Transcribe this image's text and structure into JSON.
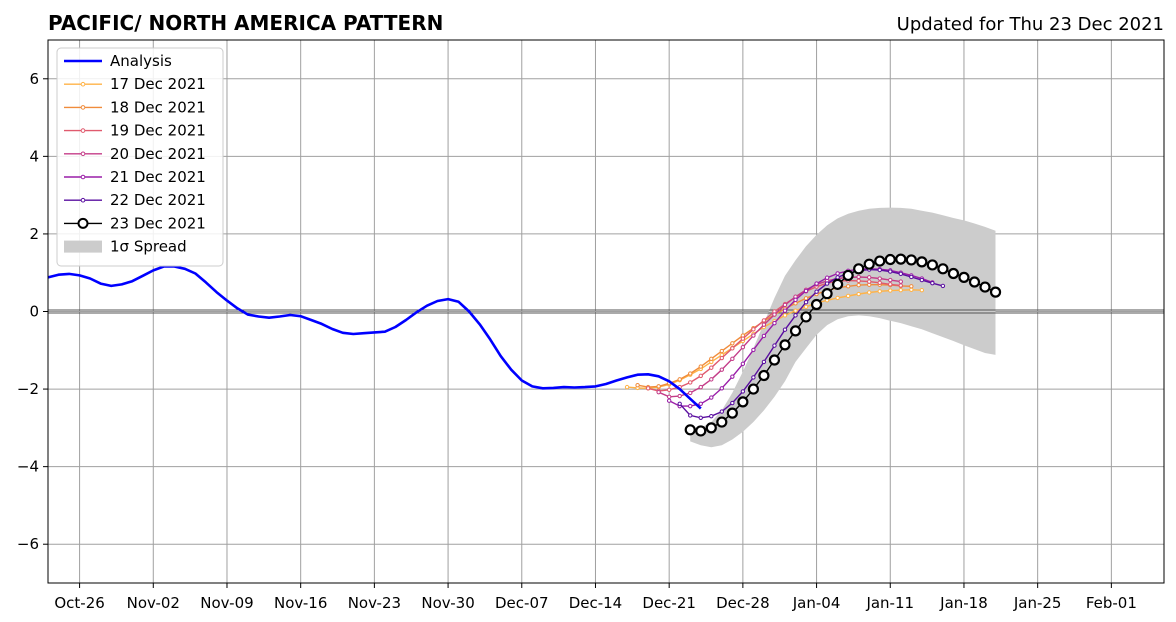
{
  "header": {
    "title": "PACIFIC/ NORTH AMERICA PATTERN",
    "updated": "Updated for Thu 23 Dec 2021"
  },
  "chart_data": {
    "type": "line",
    "title": "PACIFIC/ NORTH AMERICA PATTERN",
    "xlabel": "",
    "ylabel": "",
    "xlim": [
      "2021-10-23",
      "2022-02-06"
    ],
    "ylim": [
      -7,
      7
    ],
    "x_ticks": [
      {
        "date": "2021-10-26",
        "label": "Oct-26"
      },
      {
        "date": "2021-11-02",
        "label": "Nov-02"
      },
      {
        "date": "2021-11-09",
        "label": "Nov-09"
      },
      {
        "date": "2021-11-16",
        "label": "Nov-16"
      },
      {
        "date": "2021-11-23",
        "label": "Nov-23"
      },
      {
        "date": "2021-11-30",
        "label": "Nov-30"
      },
      {
        "date": "2021-12-07",
        "label": "Dec-07"
      },
      {
        "date": "2021-12-14",
        "label": "Dec-14"
      },
      {
        "date": "2021-12-21",
        "label": "Dec-21"
      },
      {
        "date": "2021-12-28",
        "label": "Dec-28"
      },
      {
        "date": "2022-01-04",
        "label": "Jan-04"
      },
      {
        "date": "2022-01-11",
        "label": "Jan-11"
      },
      {
        "date": "2022-01-18",
        "label": "Jan-18"
      },
      {
        "date": "2022-01-25",
        "label": "Jan-25"
      },
      {
        "date": "2022-02-01",
        "label": "Feb-01"
      }
    ],
    "y_ticks": [
      {
        "value": 6,
        "label": "6"
      },
      {
        "value": 4,
        "label": "4"
      },
      {
        "value": 2,
        "label": "2"
      },
      {
        "value": 0,
        "label": "0"
      },
      {
        "value": -2,
        "label": "−2"
      },
      {
        "value": -4,
        "label": "−4"
      },
      {
        "value": -6,
        "label": "−6"
      }
    ],
    "grid": true,
    "legend_position": "top-left",
    "legend": [
      {
        "label": "Analysis",
        "key": "analysis"
      },
      {
        "label": "17 Dec 2021",
        "key": "f17"
      },
      {
        "label": "18 Dec 2021",
        "key": "f18"
      },
      {
        "label": "19 Dec 2021",
        "key": "f19"
      },
      {
        "label": "20 Dec 2021",
        "key": "f20"
      },
      {
        "label": "21 Dec 2021",
        "key": "f21"
      },
      {
        "label": "22 Dec 2021",
        "key": "f22"
      },
      {
        "label": "23 Dec 2021",
        "key": "f23"
      },
      {
        "label": "1σ Spread",
        "key": "spread"
      }
    ],
    "analysis": {
      "color": "#0000ff",
      "start": "2021-10-23",
      "step_days": 1,
      "values": [
        0.88,
        0.95,
        0.97,
        0.93,
        0.85,
        0.72,
        0.66,
        0.7,
        0.78,
        0.92,
        1.06,
        1.16,
        1.16,
        1.1,
        0.98,
        0.75,
        0.5,
        0.28,
        0.08,
        -0.08,
        -0.13,
        -0.16,
        -0.13,
        -0.09,
        -0.12,
        -0.22,
        -0.32,
        -0.45,
        -0.55,
        -0.58,
        -0.56,
        -0.54,
        -0.52,
        -0.4,
        -0.22,
        -0.02,
        0.15,
        0.27,
        0.32,
        0.25,
        0.0,
        -0.33,
        -0.72,
        -1.15,
        -1.5,
        -1.78,
        -1.93,
        -1.98,
        -1.97,
        -1.95,
        -1.96,
        -1.95,
        -1.93,
        -1.87,
        -1.78,
        -1.7,
        -1.63,
        -1.62,
        -1.67,
        -1.8,
        -2.0,
        -2.25,
        -2.5
      ]
    },
    "forecasts": [
      {
        "name": "17 Dec 2021",
        "color": "#ffb347",
        "start": "2021-12-17",
        "step_days": 1,
        "values": [
          -1.95,
          -1.97,
          -1.98,
          -1.95,
          -1.88,
          -1.77,
          -1.63,
          -1.48,
          -1.3,
          -1.12,
          -0.94,
          -0.76,
          -0.58,
          -0.4,
          -0.25,
          -0.1,
          0.02,
          0.12,
          0.22,
          0.29,
          0.35,
          0.4,
          0.45,
          0.49,
          0.52,
          0.54,
          0.55,
          0.56,
          0.55
        ]
      },
      {
        "name": "18 Dec 2021",
        "color": "#f08c3c",
        "start": "2021-12-18",
        "step_days": 1,
        "values": [
          -1.9,
          -1.95,
          -1.93,
          -1.85,
          -1.75,
          -1.6,
          -1.42,
          -1.22,
          -1.02,
          -0.82,
          -0.62,
          -0.43,
          -0.25,
          -0.08,
          0.07,
          0.21,
          0.34,
          0.45,
          0.54,
          0.61,
          0.65,
          0.68,
          0.69,
          0.69,
          0.68,
          0.66,
          0.65
        ]
      },
      {
        "name": "19 Dec 2021",
        "color": "#e05a6e",
        "start": "2021-12-19",
        "step_days": 1,
        "values": [
          -1.98,
          -2.05,
          -2.02,
          -1.95,
          -1.83,
          -1.66,
          -1.45,
          -1.2,
          -0.95,
          -0.7,
          -0.46,
          -0.23,
          0.0,
          0.19,
          0.37,
          0.52,
          0.64,
          0.73,
          0.78,
          0.8,
          0.79,
          0.77,
          0.74,
          0.7,
          0.67
        ]
      },
      {
        "name": "20 Dec 2021",
        "color": "#c43c88",
        "start": "2021-12-20",
        "step_days": 1,
        "values": [
          -2.08,
          -2.2,
          -2.18,
          -2.1,
          -1.95,
          -1.75,
          -1.5,
          -1.22,
          -0.92,
          -0.62,
          -0.34,
          -0.08,
          0.17,
          0.38,
          0.56,
          0.7,
          0.79,
          0.85,
          0.88,
          0.89,
          0.88,
          0.85,
          0.81,
          0.77
        ]
      },
      {
        "name": "21 Dec 2021",
        "color": "#9a1ea8",
        "start": "2021-12-21",
        "step_days": 1,
        "values": [
          -2.3,
          -2.44,
          -2.44,
          -2.38,
          -2.22,
          -1.98,
          -1.68,
          -1.35,
          -0.99,
          -0.63,
          -0.3,
          0.02,
          0.3,
          0.53,
          0.72,
          0.87,
          0.98,
          1.05,
          1.09,
          1.1,
          1.09,
          1.06,
          1.0,
          0.93,
          0.85,
          0.75
        ]
      },
      {
        "name": "22 Dec 2021",
        "color": "#5a0fa0",
        "start": "2021-12-22",
        "step_days": 1,
        "values": [
          -2.38,
          -2.68,
          -2.74,
          -2.7,
          -2.58,
          -2.36,
          -2.06,
          -1.7,
          -1.3,
          -0.88,
          -0.47,
          -0.1,
          0.24,
          0.51,
          0.72,
          0.88,
          0.99,
          1.05,
          1.08,
          1.07,
          1.03,
          0.97,
          0.89,
          0.81,
          0.73,
          0.66
        ]
      }
    ],
    "latest": {
      "name": "23 Dec 2021",
      "color": "#000000",
      "start": "2021-12-23",
      "step_days": 1,
      "values": [
        -3.05,
        -3.08,
        -3.0,
        -2.85,
        -2.62,
        -2.33,
        -2.0,
        -1.65,
        -1.25,
        -0.86,
        -0.5,
        -0.14,
        0.18,
        0.46,
        0.7,
        0.93,
        1.1,
        1.22,
        1.3,
        1.34,
        1.35,
        1.33,
        1.28,
        1.2,
        1.1,
        0.98,
        0.88,
        0.76,
        0.63,
        0.5
      ]
    },
    "spread": {
      "color": "#cccccc",
      "start": "2021-12-23",
      "step_days": 1,
      "upper": [
        -3.05,
        -3.0,
        -2.85,
        -2.55,
        -2.1,
        -1.55,
        -0.95,
        -0.3,
        0.35,
        0.92,
        1.32,
        1.68,
        1.98,
        2.22,
        2.4,
        2.52,
        2.6,
        2.65,
        2.67,
        2.68,
        2.67,
        2.65,
        2.6,
        2.55,
        2.48,
        2.41,
        2.35,
        2.27,
        2.18,
        2.08
      ],
      "lower": [
        -3.35,
        -3.45,
        -3.5,
        -3.45,
        -3.3,
        -3.1,
        -2.85,
        -2.55,
        -2.2,
        -1.8,
        -1.3,
        -0.95,
        -0.6,
        -0.35,
        -0.2,
        -0.12,
        -0.1,
        -0.12,
        -0.17,
        -0.24,
        -0.3,
        -0.38,
        -0.46,
        -0.56,
        -0.66,
        -0.76,
        -0.87,
        -0.97,
        -1.07,
        -1.12
      ]
    }
  }
}
